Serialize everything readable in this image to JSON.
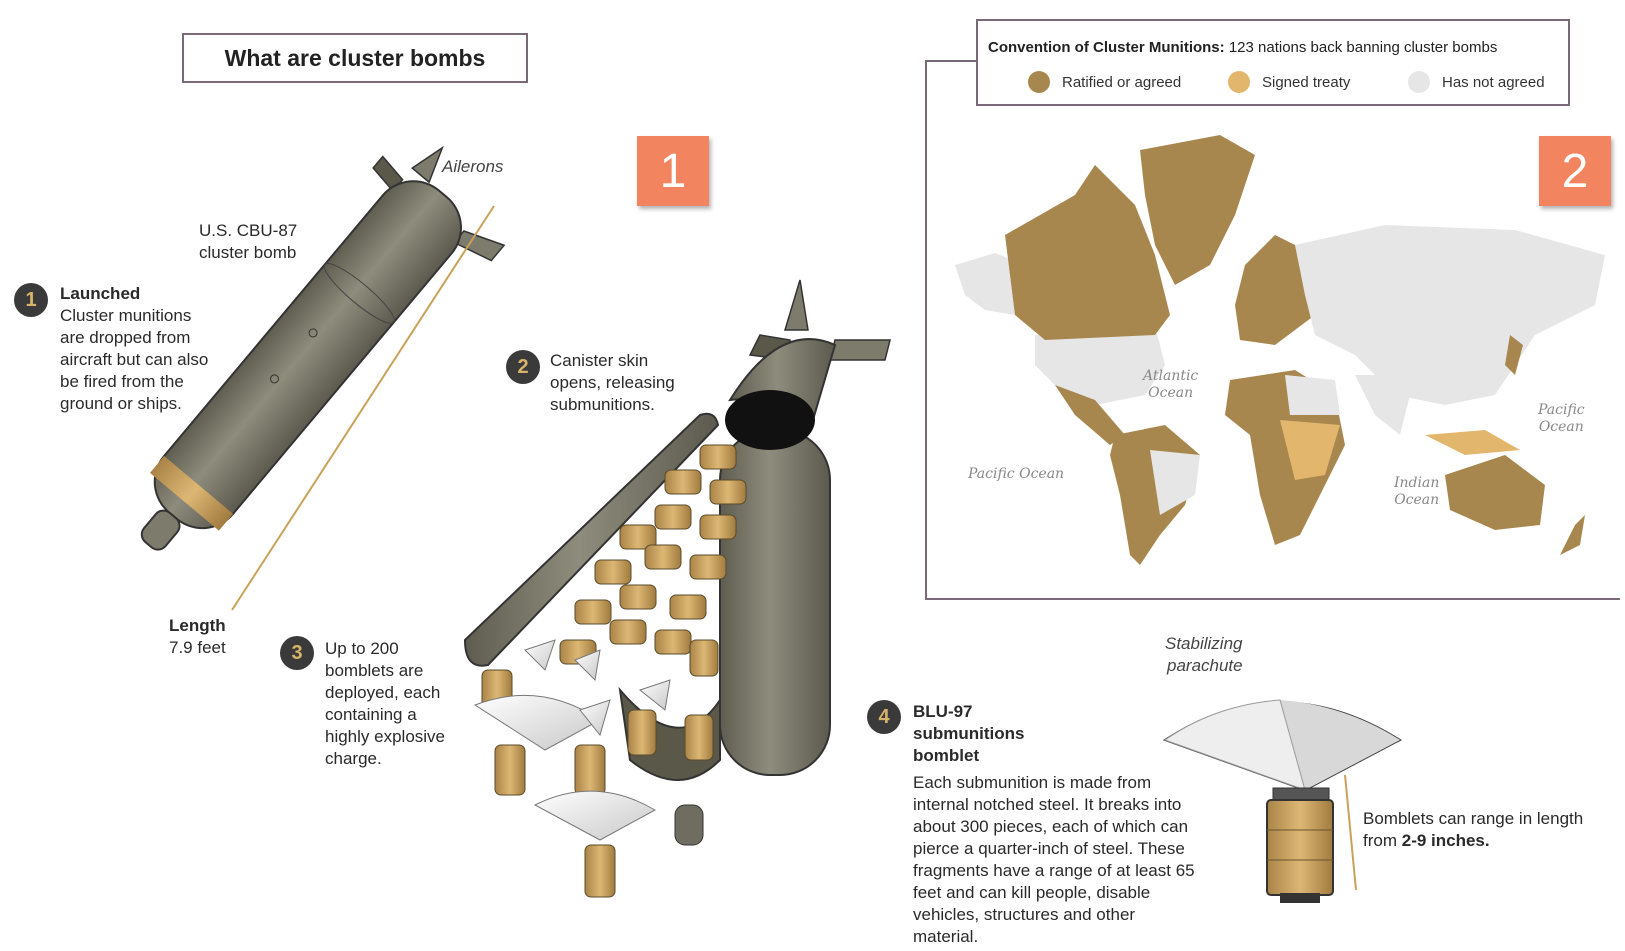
{
  "title": "What are cluster bombs",
  "badges": {
    "one": "1",
    "two": "2"
  },
  "bomb": {
    "aileron_label": "Ailerons",
    "name_line1": "U.S. CBU-87",
    "name_line2": "cluster bomb",
    "length_label": "Length",
    "length_value": "7.9 feet"
  },
  "steps": [
    {
      "num": "1",
      "title": "Launched",
      "lines": [
        "Cluster munitions",
        "are dropped from",
        "aircraft but can also",
        "be fired from the",
        "ground or ships."
      ]
    },
    {
      "num": "2",
      "lines": [
        "Canister skin",
        "opens, releasing",
        "submunitions."
      ]
    },
    {
      "num": "3",
      "lines": [
        "Up to 200",
        "bomblets are",
        "deployed, each",
        "containing a",
        "highly explosive",
        "charge."
      ]
    },
    {
      "num": "4",
      "title_lines": [
        "BLU-97",
        "submunitions",
        "bomblet"
      ],
      "lines": [
        "Each submunition is made from",
        "internal notched steel. It breaks into",
        "about 300 pieces, each of which can",
        "pierce a quarter-inch of steel. These",
        "fragments have a range of at least 65",
        "feet and can kill people, disable",
        "vehicles, structures and other",
        "material."
      ]
    }
  ],
  "parachute": {
    "label_line1": "Stabilizing",
    "label_line2": "parachute"
  },
  "bomblet_size": {
    "text": "Bomblets can range in length",
    "text2_prefix": "from ",
    "text2_bold": "2-9 inches."
  },
  "map": {
    "legend_title_bold": "Convention of Cluster Munitions:",
    "legend_title_rest": " 123 nations back banning cluster bombs",
    "legend": [
      {
        "label": "Ratified or agreed",
        "color": "#a8874f"
      },
      {
        "label": "Signed treaty",
        "color": "#e2b66c"
      },
      {
        "label": "Has not agreed",
        "color": "#e6e6e6"
      }
    ],
    "oceans": {
      "atlantic": [
        "Atlantic",
        "Ocean"
      ],
      "pacific_left": [
        "Pacific Ocean"
      ],
      "indian": [
        "Indian",
        "Ocean"
      ],
      "pacific_right": [
        "Pacific",
        "Ocean"
      ]
    }
  },
  "colors": {
    "accent": "#f2855f",
    "bomb_body": "#7c7a6a",
    "bomblet": "#c9a259",
    "dark": "#3a3a3a"
  }
}
